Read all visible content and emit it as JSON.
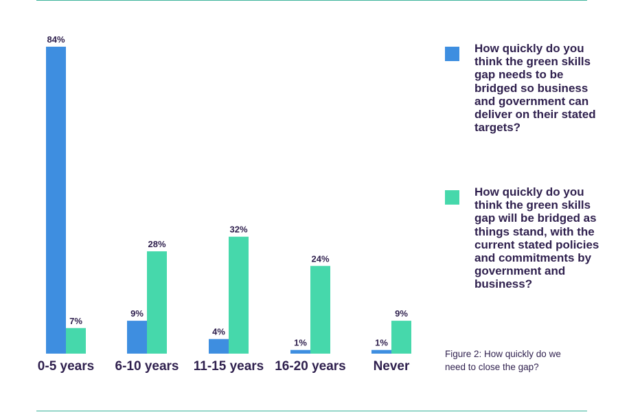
{
  "chart_data": {
    "type": "bar",
    "categories": [
      "0-5 years",
      "6-10 years",
      "11-15 years",
      "16-20 years",
      "Never"
    ],
    "series": [
      {
        "name": "How quickly do you think the green skills gap needs to be bridged so business and government can deliver on their stated targets?",
        "values": [
          84,
          9,
          4,
          1,
          1
        ],
        "labels": [
          "84%",
          "9%",
          "4%",
          "1%",
          "1%"
        ]
      },
      {
        "name": "How quickly do you think the green skills gap will be bridged as things stand, with the current stated policies and commitments by government and business?",
        "values": [
          7,
          28,
          32,
          24,
          9
        ],
        "labels": [
          "7%",
          "28%",
          "32%",
          "24%",
          "9%"
        ]
      }
    ],
    "ylim": [
      0,
      84
    ],
    "grid": false,
    "legend_position": "right"
  },
  "colors": {
    "series_1": "#3e8ee0",
    "series_2": "#46d8ab",
    "text": "#2e1f4d",
    "rule": "#3ab39a"
  },
  "caption": "Figure 2: How quickly do we need to close the gap?"
}
